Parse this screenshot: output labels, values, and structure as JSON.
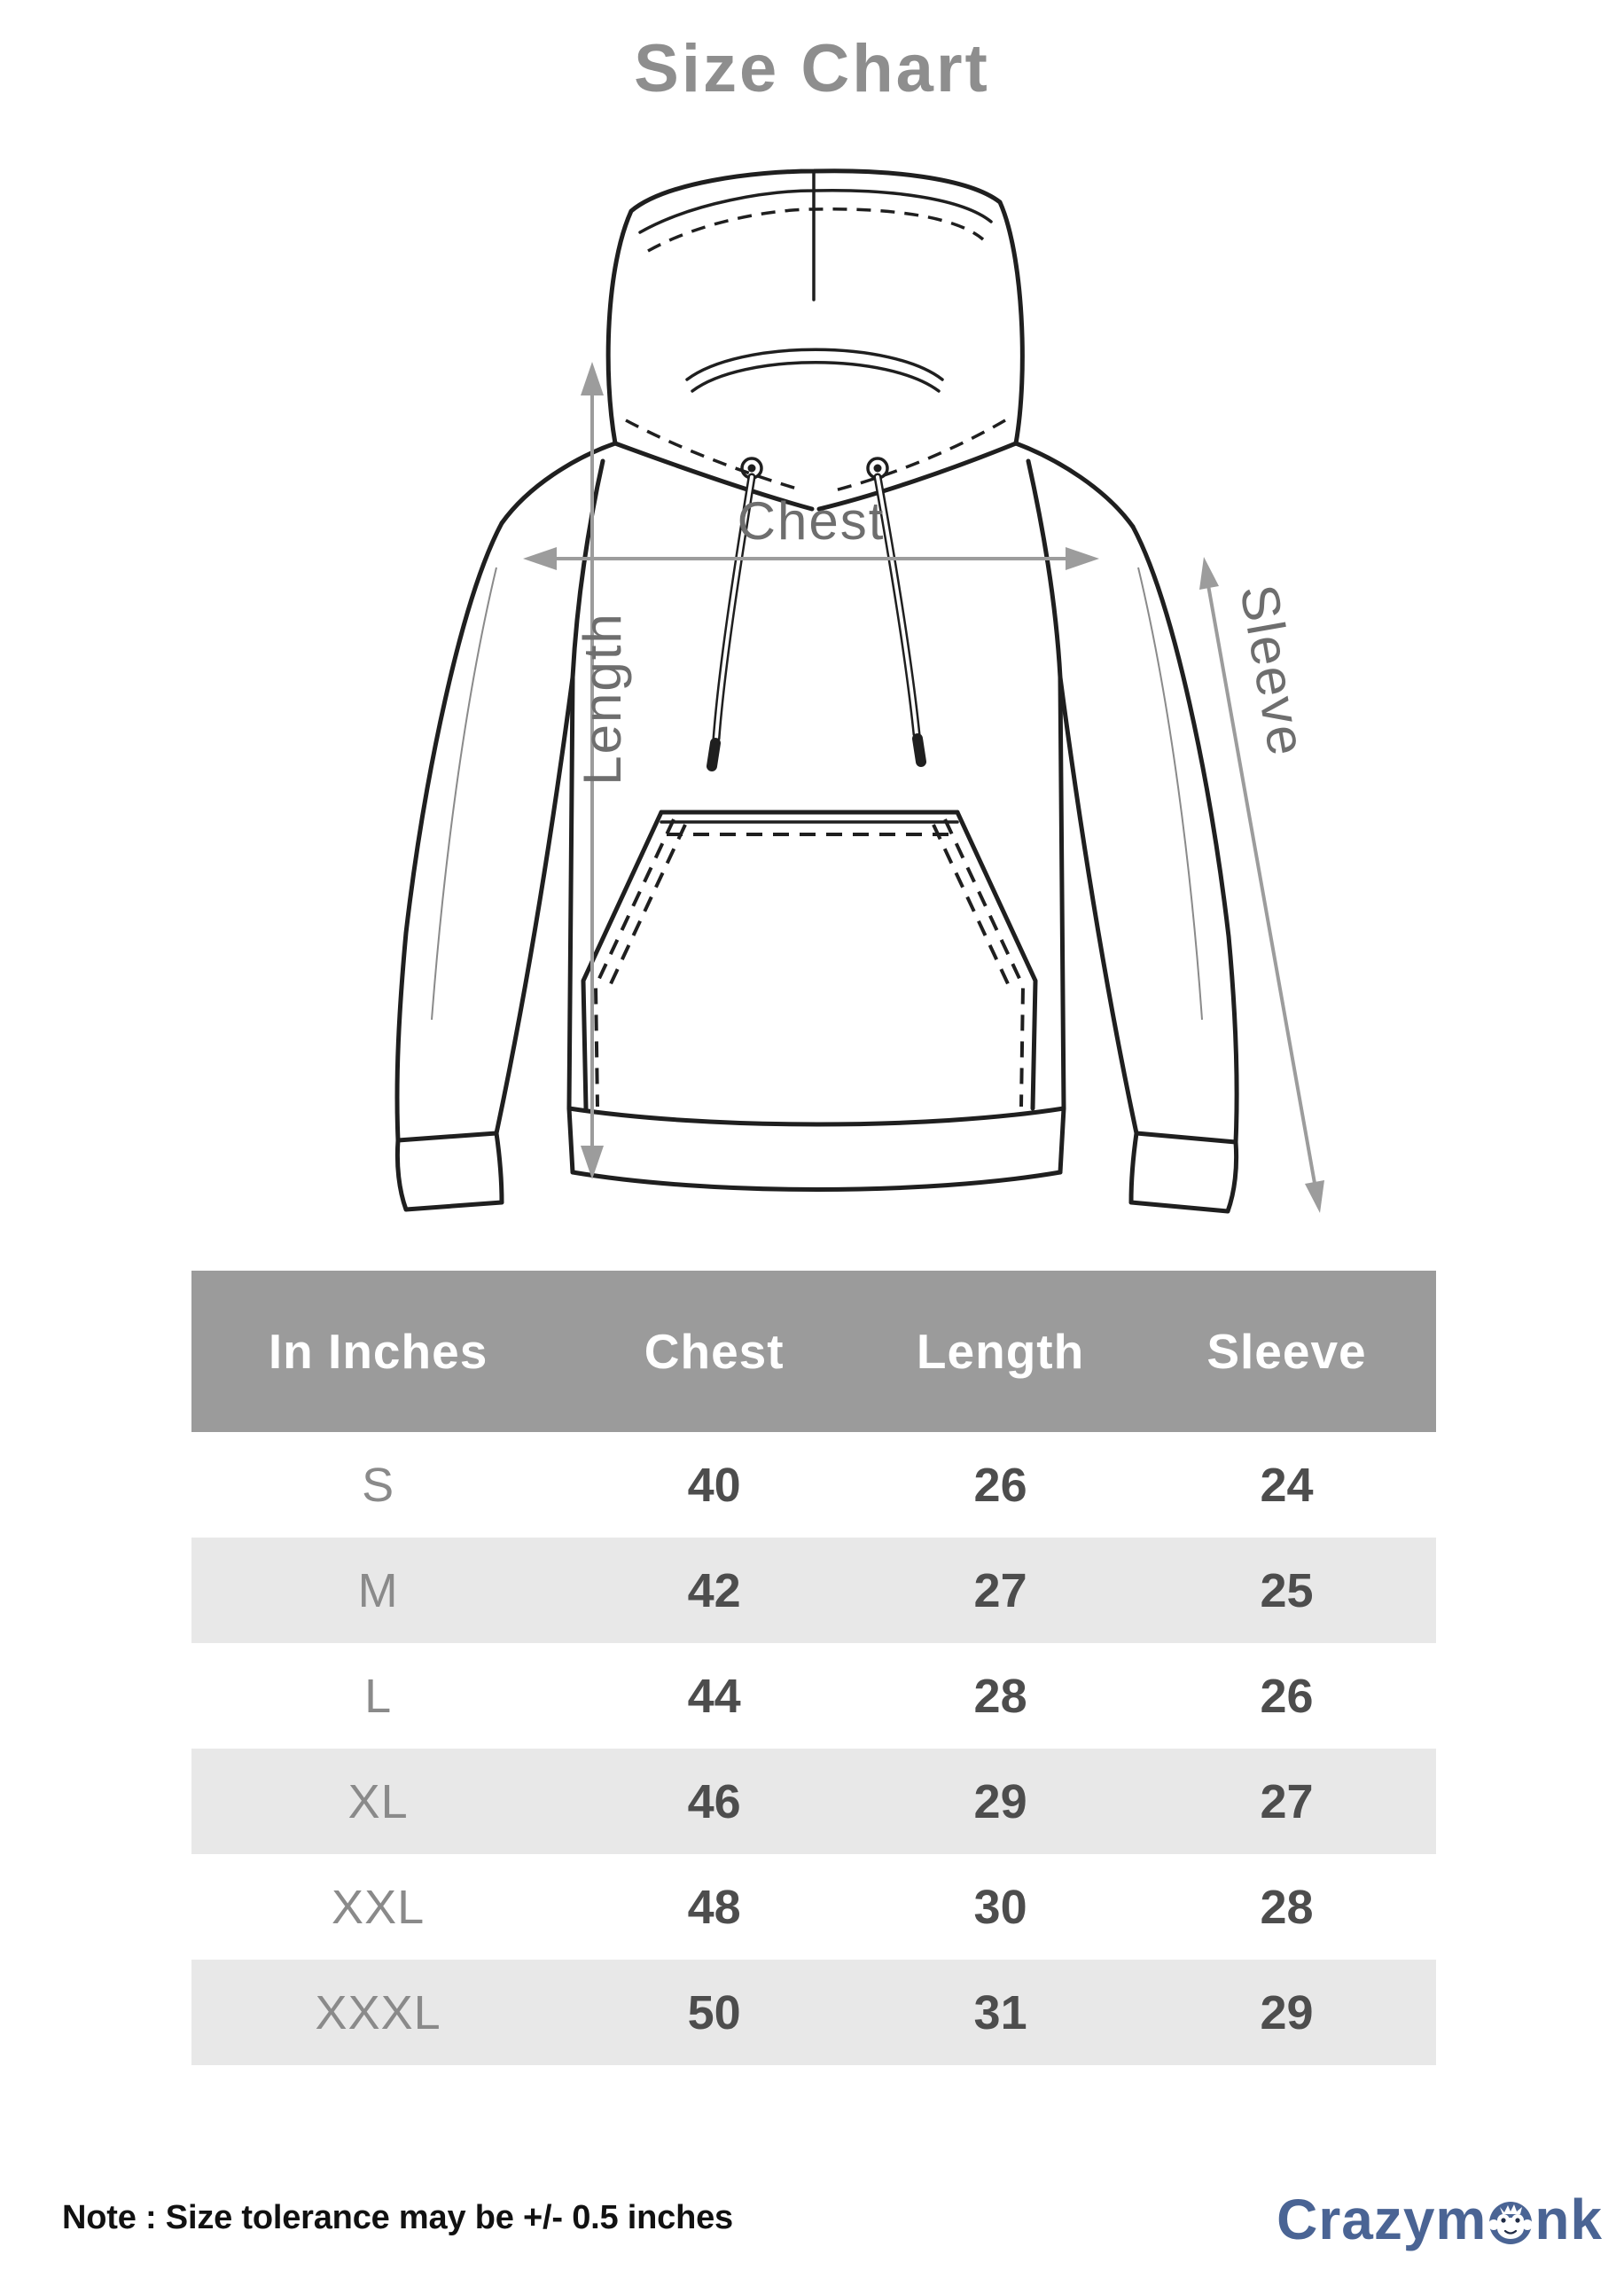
{
  "title": "Size Chart",
  "diagram": {
    "chest_label": "Chest",
    "length_label": "Length",
    "sleeve_label": "Sleeve"
  },
  "table": {
    "header": [
      "In Inches",
      "Chest",
      "Length",
      "Sleeve"
    ],
    "rows": [
      {
        "size": "S",
        "chest": "40",
        "length": "26",
        "sleeve": "24"
      },
      {
        "size": "M",
        "chest": "42",
        "length": "27",
        "sleeve": "25"
      },
      {
        "size": "L",
        "chest": "44",
        "length": "28",
        "sleeve": "26"
      },
      {
        "size": "XL",
        "chest": "46",
        "length": "29",
        "sleeve": "27"
      },
      {
        "size": "XXL",
        "chest": "48",
        "length": "30",
        "sleeve": "28"
      },
      {
        "size": "XXXL",
        "chest": "50",
        "length": "31",
        "sleeve": "29"
      }
    ]
  },
  "note": "Note : Size tolerance may be +/-  0.5 inches",
  "brand": {
    "part1": "Crazym",
    "part2": "nk",
    "monkey_icon": "monkey-face-icon",
    "blue": "#4a6494"
  },
  "colors": {
    "title_gray": "#8e8e8e",
    "header_bg": "#9b9b9b",
    "alt_row_bg": "#e8e8e8",
    "value_gray": "#4d4d4d",
    "size_gray": "#8a8a8a",
    "arrow_gray": "#9c9c9c",
    "line_art": "#1f1f1f"
  },
  "chart_data": {
    "type": "table",
    "title": "Size Chart",
    "unit": "In Inches",
    "categories": [
      "S",
      "M",
      "L",
      "XL",
      "XXL",
      "XXXL"
    ],
    "series": [
      {
        "name": "Chest",
        "values": [
          40,
          42,
          44,
          46,
          48,
          50
        ]
      },
      {
        "name": "Length",
        "values": [
          26,
          27,
          28,
          29,
          30,
          31
        ]
      },
      {
        "name": "Sleeve",
        "values": [
          24,
          25,
          26,
          27,
          28,
          29
        ]
      }
    ],
    "note": "Note : Size tolerance may be +/-  0.5 inches"
  }
}
